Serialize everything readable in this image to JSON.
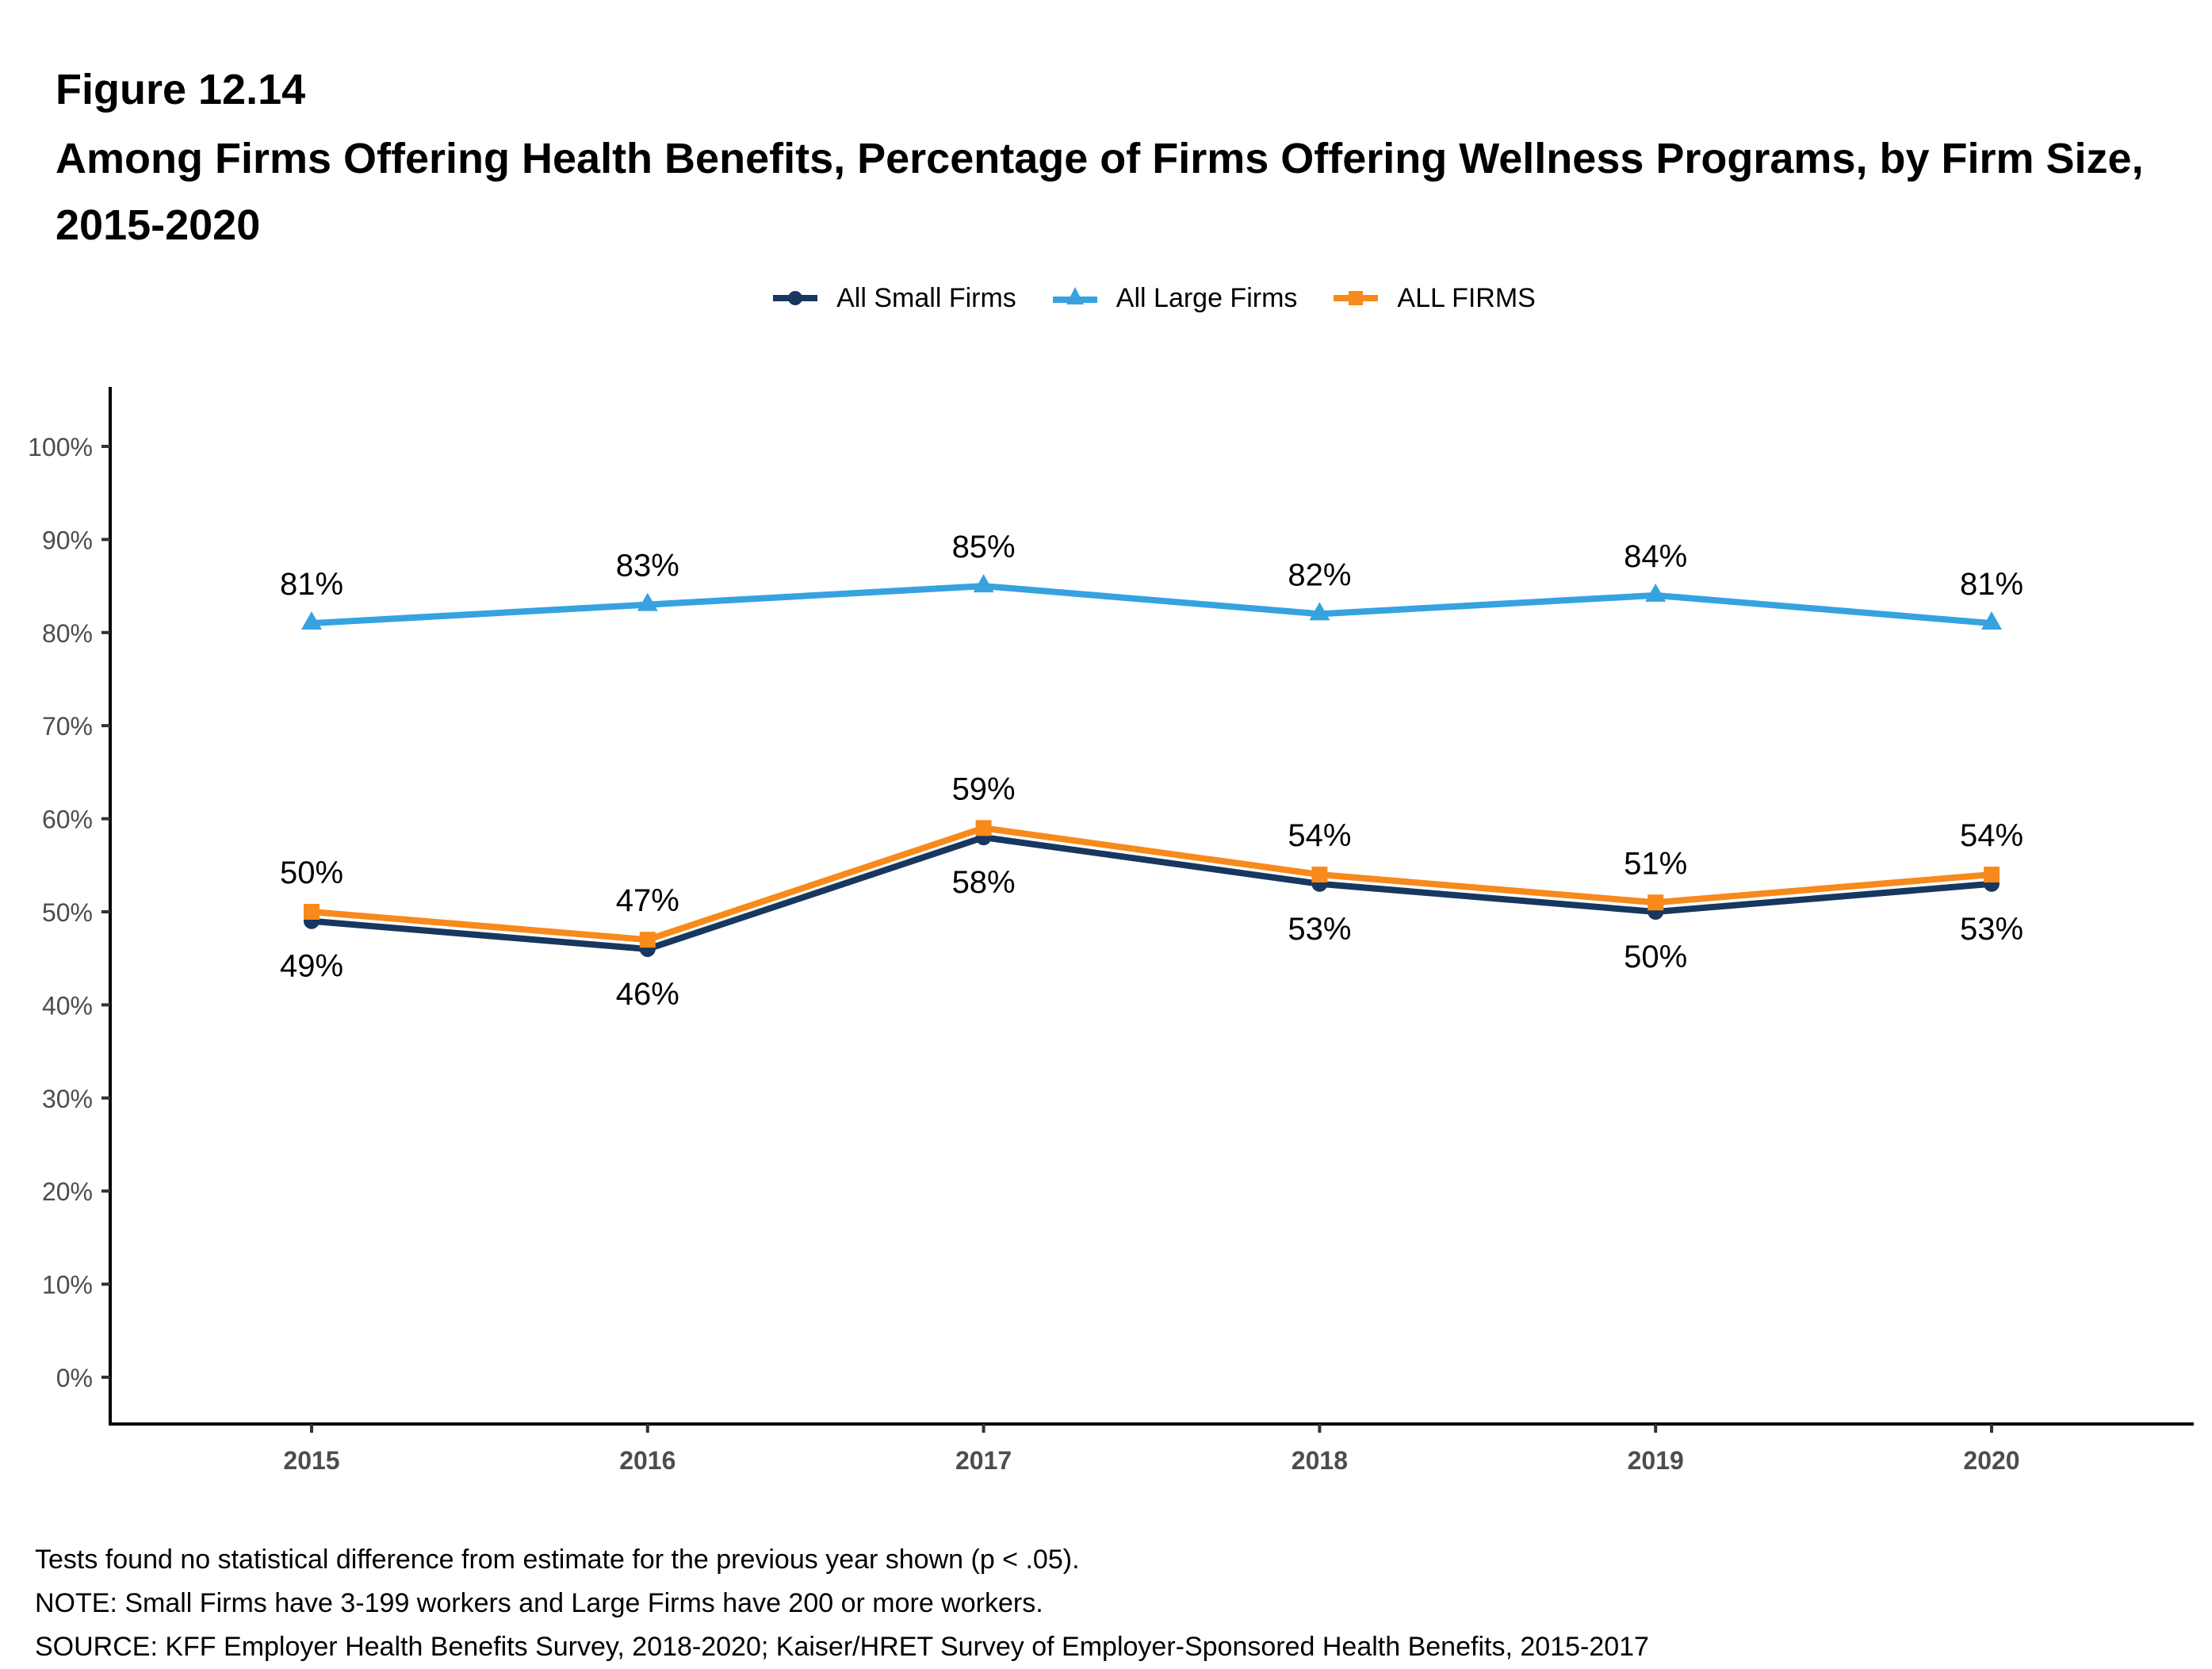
{
  "figure": {
    "label": "Figure 12.14",
    "title": "Among Firms Offering Health Benefits, Percentage of Firms Offering Wellness Programs, by Firm Size, 2015-2020"
  },
  "legend": [
    {
      "name": "All Small Firms",
      "color": "#17375e",
      "marker": "circle"
    },
    {
      "name": "All Large Firms",
      "color": "#36a2e0",
      "marker": "triangle"
    },
    {
      "name": "ALL FIRMS",
      "color": "#f8891b",
      "marker": "square"
    }
  ],
  "notes": [
    "Tests found no statistical difference from estimate for the previous year shown (p < .05).",
    "NOTE: Small Firms have 3-199 workers and Large Firms have 200 or more workers.",
    "SOURCE: KFF Employer Health Benefits Survey, 2018-2020; Kaiser/HRET Survey of Employer-Sponsored Health Benefits, 2015-2017"
  ],
  "chart_data": {
    "type": "line",
    "title": "Among Firms Offering Health Benefits, Percentage of Firms Offering Wellness Programs, by Firm Size, 2015-2020",
    "xlabel": "",
    "ylabel": "",
    "categories": [
      "2015",
      "2016",
      "2017",
      "2018",
      "2019",
      "2020"
    ],
    "ylim": [
      0,
      100
    ],
    "yticks": [
      0,
      10,
      20,
      30,
      40,
      50,
      60,
      70,
      80,
      90,
      100
    ],
    "ytick_labels": [
      "0%",
      "10%",
      "20%",
      "30%",
      "40%",
      "50%",
      "60%",
      "70%",
      "80%",
      "90%",
      "100%"
    ],
    "grid": false,
    "legend_position": "top",
    "series": [
      {
        "name": "All Small Firms",
        "color": "#17375e",
        "marker": "circle",
        "label_position": "below",
        "values": [
          49,
          46,
          58,
          53,
          50,
          53
        ],
        "labels": [
          "49%",
          "46%",
          "58%",
          "53%",
          "50%",
          "53%"
        ]
      },
      {
        "name": "All Large Firms",
        "color": "#36a2e0",
        "marker": "triangle",
        "label_position": "above",
        "values": [
          81,
          83,
          85,
          82,
          84,
          81
        ],
        "labels": [
          "81%",
          "83%",
          "85%",
          "82%",
          "84%",
          "81%"
        ]
      },
      {
        "name": "ALL FIRMS",
        "color": "#f8891b",
        "marker": "square",
        "label_position": "above",
        "values": [
          50,
          47,
          59,
          54,
          51,
          54
        ],
        "labels": [
          "50%",
          "47%",
          "59%",
          "54%",
          "51%",
          "54%"
        ]
      }
    ]
  }
}
